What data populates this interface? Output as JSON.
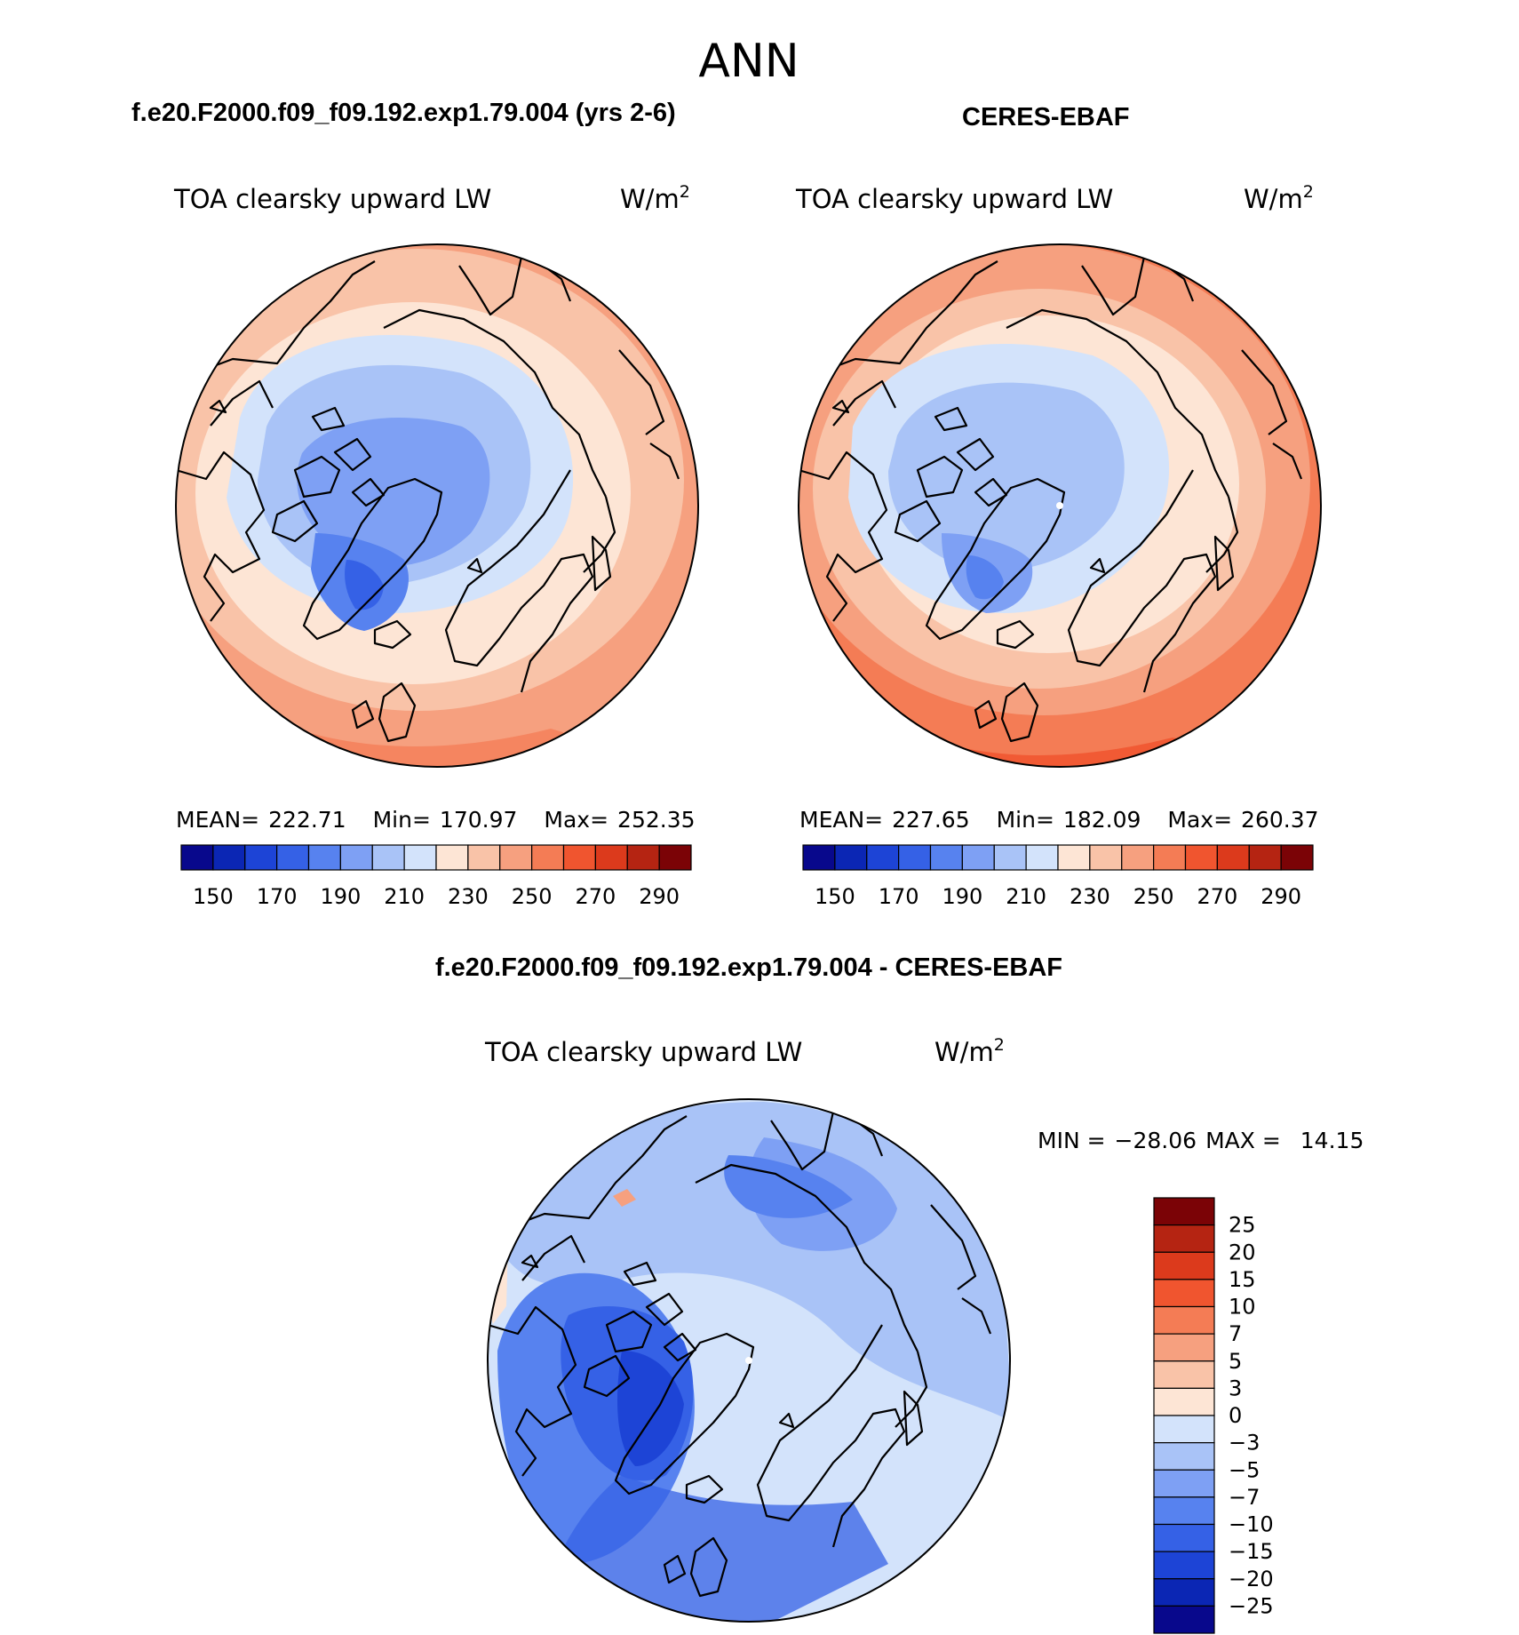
{
  "page_title": "ANN",
  "chart_data": [
    {
      "type": "heatmap",
      "projection": "north-polar-stereographic",
      "panel_title": "f.e20.F2000.f09_f09.192.exp1.79.004 (yrs 2-6)",
      "variable_label": "TOA clearsky upward LW",
      "units": "W/m",
      "units_exponent": "2",
      "stats": {
        "mean_label": "MEAN=",
        "mean": "222.71",
        "min_label": "Min=",
        "min": "170.97",
        "max_label": "Max=",
        "max": "252.35"
      },
      "colorbar": {
        "orientation": "horizontal",
        "levels": [
          140,
          150,
          160,
          170,
          180,
          190,
          200,
          210,
          220,
          230,
          240,
          250,
          260,
          270,
          280,
          290
        ],
        "tick_labels": [
          "150",
          "170",
          "190",
          "210",
          "230",
          "250",
          "270",
          "290"
        ],
        "colors": [
          "#08088c",
          "#0b26b4",
          "#1d44d6",
          "#3561e6",
          "#5782ef",
          "#7ea0f4",
          "#a9c3f7",
          "#d3e3fb",
          "#fde5d5",
          "#f9c3a8",
          "#f6a07f",
          "#f47c55",
          "#f0552f",
          "#dc3a1c",
          "#b52412",
          "#7b0306"
        ]
      }
    },
    {
      "type": "heatmap",
      "projection": "north-polar-stereographic",
      "panel_title": "CERES-EBAF",
      "variable_label": "TOA clearsky upward LW",
      "units": "W/m",
      "units_exponent": "2",
      "stats": {
        "mean_label": "MEAN=",
        "mean": "227.65",
        "min_label": "Min=",
        "min": "182.09",
        "max_label": "Max=",
        "max": "260.37"
      },
      "colorbar": {
        "orientation": "horizontal",
        "levels": [
          140,
          150,
          160,
          170,
          180,
          190,
          200,
          210,
          220,
          230,
          240,
          250,
          260,
          270,
          280,
          290
        ],
        "tick_labels": [
          "150",
          "170",
          "190",
          "210",
          "230",
          "250",
          "270",
          "290"
        ],
        "colors": [
          "#08088c",
          "#0b26b4",
          "#1d44d6",
          "#3561e6",
          "#5782ef",
          "#7ea0f4",
          "#a9c3f7",
          "#d3e3fb",
          "#fde5d5",
          "#f9c3a8",
          "#f6a07f",
          "#f47c55",
          "#f0552f",
          "#dc3a1c",
          "#b52412",
          "#7b0306"
        ]
      }
    },
    {
      "type": "heatmap",
      "projection": "north-polar-stereographic",
      "panel_title": "f.e20.F2000.f09_f09.192.exp1.79.004 - CERES-EBAF",
      "variable_label": "TOA clearsky upward LW",
      "units": "W/m",
      "units_exponent": "2",
      "stats": {
        "min_label": "MIN =",
        "min": "−28.06",
        "max_label": "MAX =",
        "max": "14.15"
      },
      "colorbar": {
        "orientation": "vertical",
        "tick_labels_top_to_bottom": [
          "25",
          "20",
          "15",
          "10",
          "7",
          "5",
          "3",
          "0",
          "−3",
          "−5",
          "−7",
          "−10",
          "−15",
          "−20",
          "−25"
        ],
        "colors_top_to_bottom": [
          "#7b0306",
          "#b52412",
          "#dc3a1c",
          "#f0552f",
          "#f47c55",
          "#f6a07f",
          "#f9c3a8",
          "#fde5d5",
          "#d3e3fb",
          "#a9c3f7",
          "#7ea0f4",
          "#5782ef",
          "#3561e6",
          "#1d44d6",
          "#0b26b4",
          "#08088c"
        ]
      }
    }
  ]
}
